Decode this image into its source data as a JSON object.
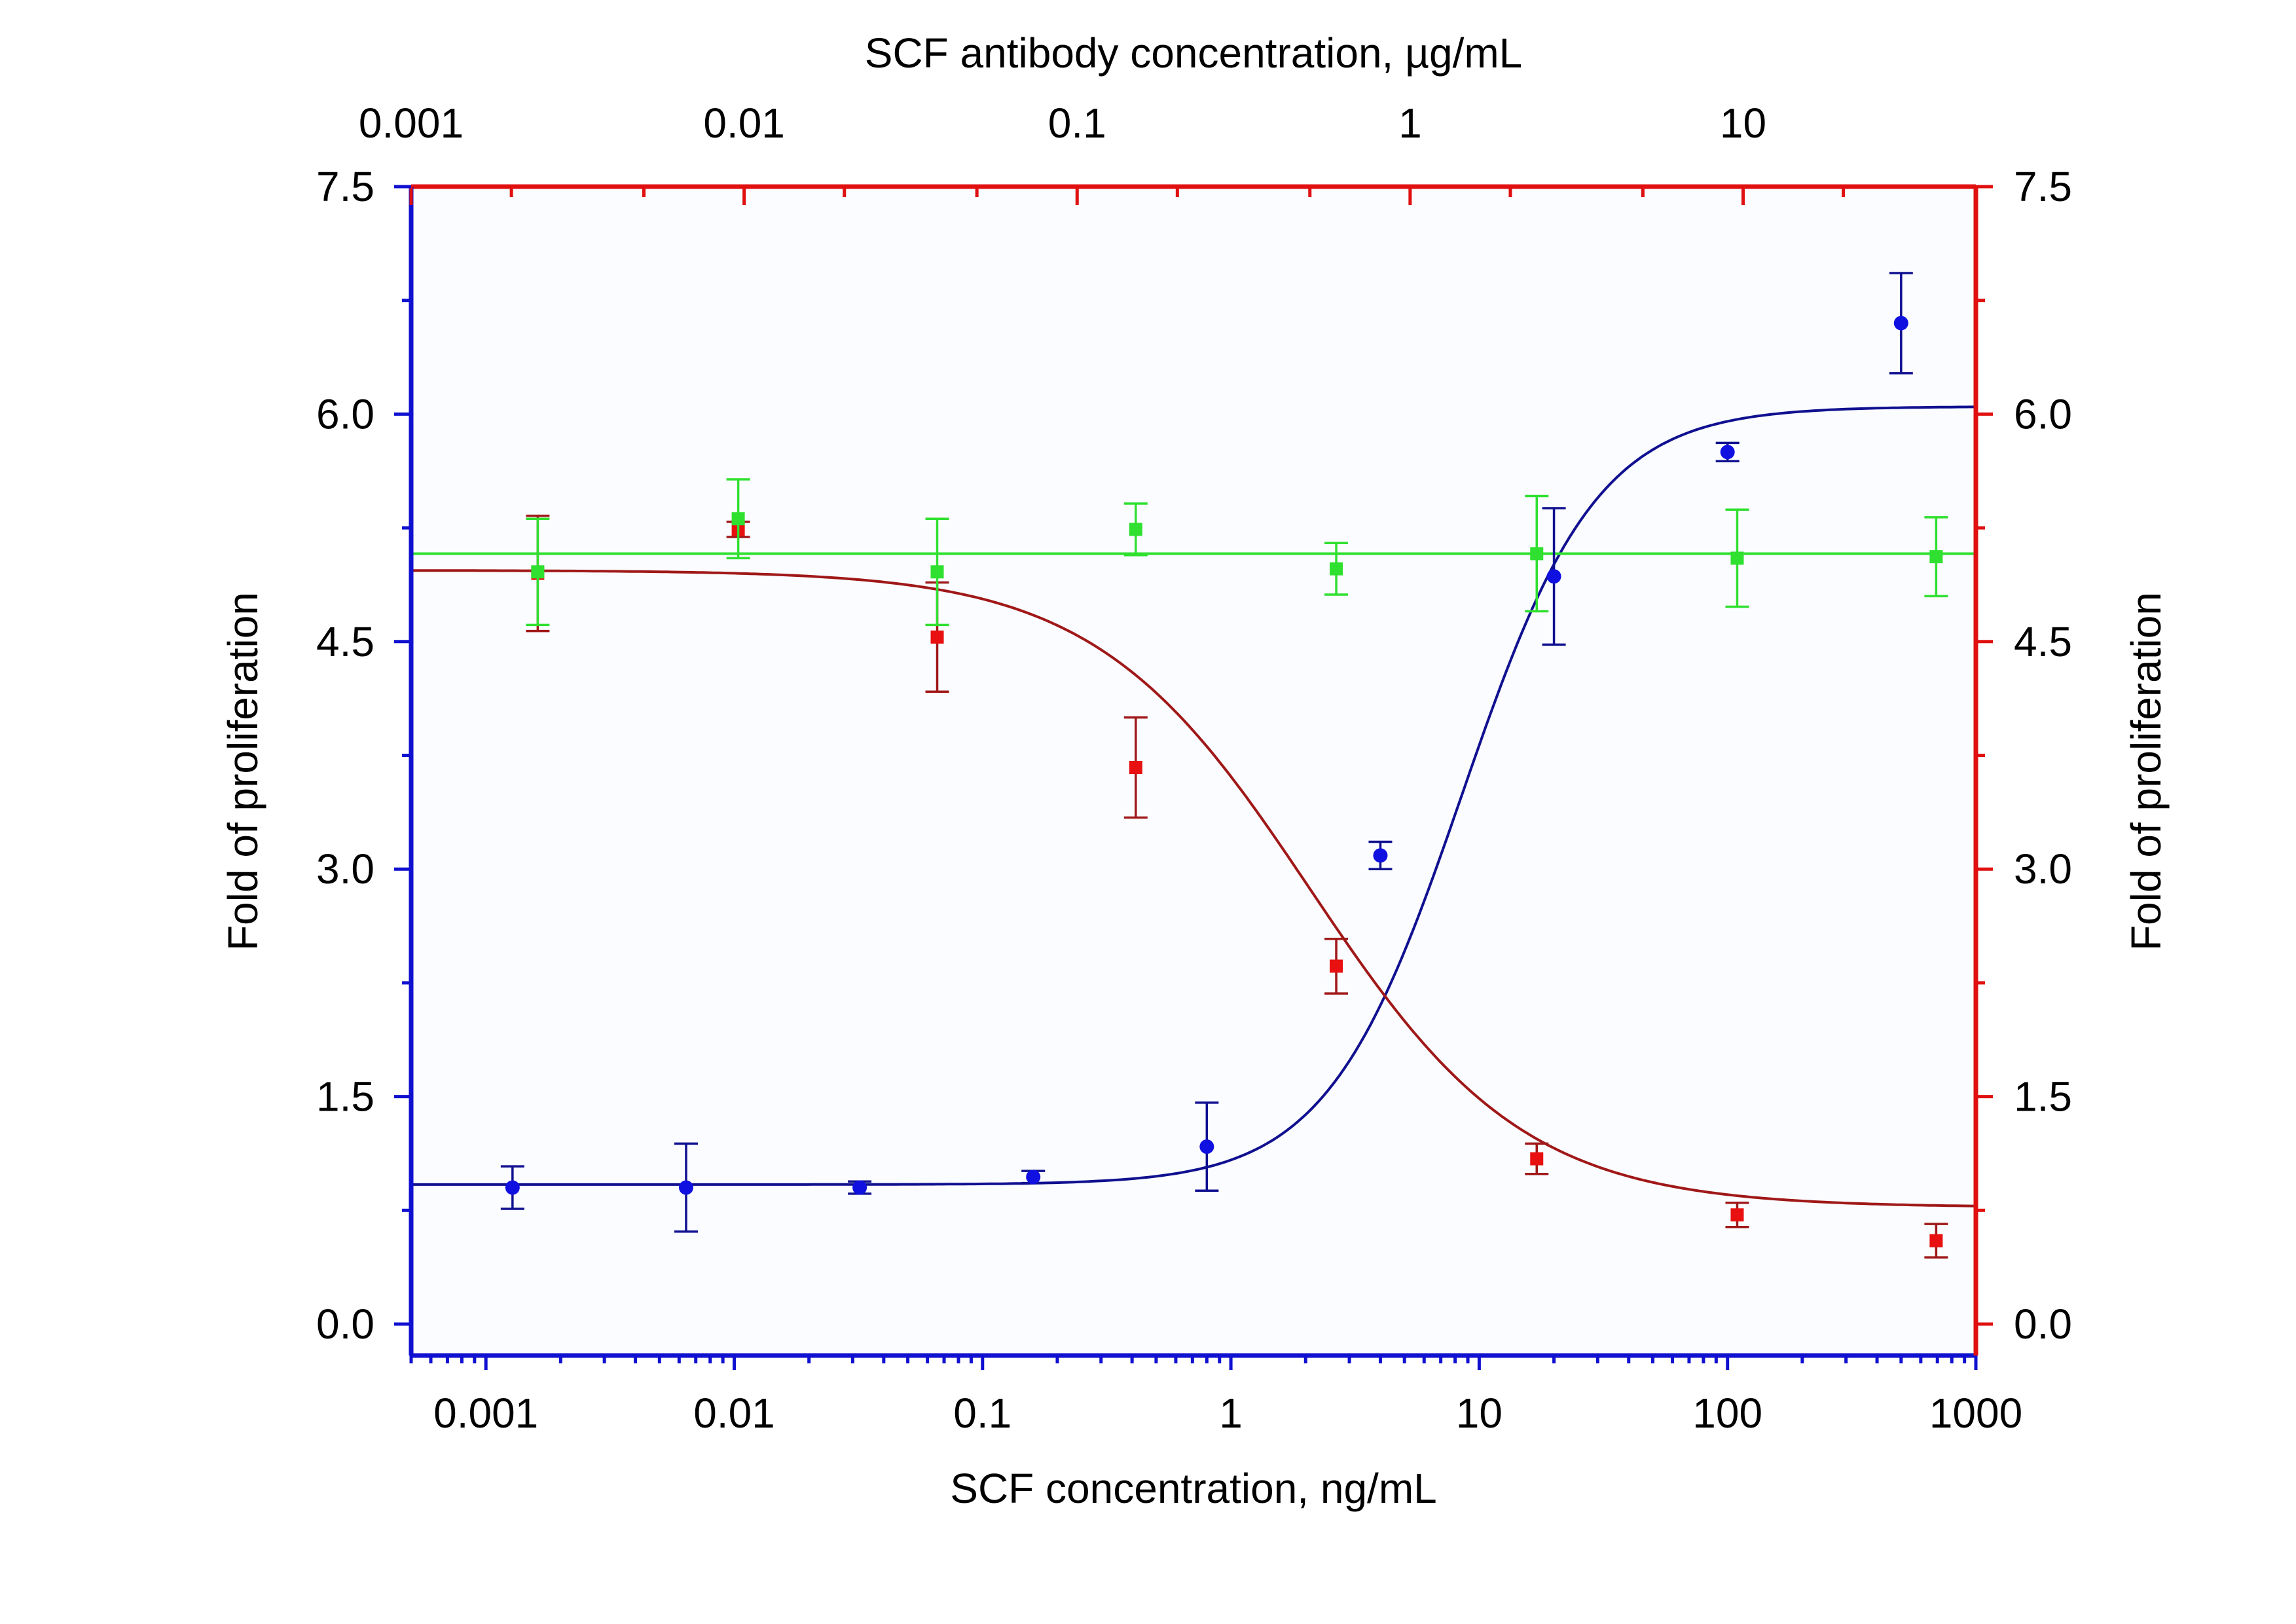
{
  "chart_data": {
    "type": "scatter",
    "title": "",
    "xlabel": "SCF concentration, ng/mL",
    "x2label": "SCF antibody concentration, µg/mL",
    "ylabel": "Fold of proliferation",
    "y2label": "Fold of proliferation",
    "x_scale": "log",
    "xlim": [
      0.0005,
      1000
    ],
    "x2lim": [
      0.001,
      50
    ],
    "ylim": [
      -0.2,
      7.5
    ],
    "x_ticks": [
      "0.001",
      "0.01",
      "0.1",
      "1",
      "10",
      "100",
      "1000"
    ],
    "x_tick_values": [
      0.001,
      0.01,
      0.1,
      1,
      10,
      100,
      1000
    ],
    "x2_ticks": [
      "0.001",
      "0.01",
      "0.1",
      "1",
      "10"
    ],
    "x2_tick_values": [
      0.001,
      0.01,
      0.1,
      1,
      10
    ],
    "y_ticks": [
      "0.0",
      "1.5",
      "3.0",
      "4.5",
      "6.0",
      "7.5"
    ],
    "y_tick_values": [
      0,
      1.5,
      3.0,
      4.5,
      6.0,
      7.5
    ],
    "grid": false,
    "legend": "none",
    "colors": {
      "bottom_axis": "#1010d0",
      "top_axis": "#e01010",
      "left_axis": "#1010d0",
      "right_axis": "#e01010"
    },
    "series": [
      {
        "axis": "bottom",
        "marker": "circle",
        "color": "#1010e0",
        "line_color": "#101090",
        "x": [
          0.00128,
          0.0064,
          0.032,
          0.16,
          0.8,
          4.0,
          20,
          100,
          500
        ],
        "y": [
          0.9,
          0.9,
          0.9,
          0.97,
          1.17,
          3.09,
          4.93,
          5.75,
          6.6
        ],
        "err": [
          0.14,
          0.29,
          0.04,
          0.04,
          0.29,
          0.09,
          0.45,
          0.06,
          0.33
        ],
        "fit": {
          "bottom": 0.92,
          "top": 6.05,
          "ec50": 8.5,
          "hill": 1.6
        }
      },
      {
        "axis": "top",
        "marker": "square",
        "color": "#e81010",
        "line_color": "#a01818",
        "x": [
          0.0024,
          0.0096,
          0.038,
          0.15,
          0.6,
          2.4,
          9.6,
          38
        ],
        "y": [
          4.95,
          5.24,
          4.53,
          3.67,
          2.36,
          1.09,
          0.72,
          0.55
        ],
        "err": [
          0.38,
          0.05,
          0.36,
          0.33,
          0.18,
          0.1,
          0.08,
          0.11
        ],
        "fit": {
          "top": 4.97,
          "bottom": 0.77,
          "ic50": 0.5,
          "hill": 1.35
        }
      },
      {
        "axis": "top",
        "marker": "square",
        "color": "#30e030",
        "line_color": "#30e030",
        "x": [
          0.0024,
          0.0096,
          0.038,
          0.15,
          0.6,
          2.4,
          9.6,
          38
        ],
        "y": [
          4.96,
          5.31,
          4.96,
          5.24,
          4.98,
          5.08,
          5.05,
          5.06
        ],
        "err": [
          0.35,
          0.26,
          0.35,
          0.17,
          0.17,
          0.38,
          0.32,
          0.26
        ],
        "fit": {
          "constant": 5.08
        }
      }
    ]
  }
}
